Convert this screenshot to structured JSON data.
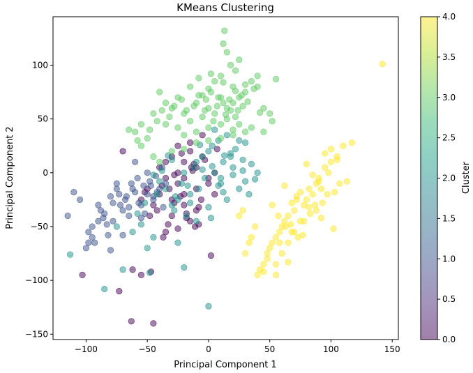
{
  "chart_data": {
    "type": "scatter",
    "title": "KMeans Clustering",
    "xlabel": "Principal Component 1",
    "ylabel": "Principal Component 2",
    "xlim": [
      -127,
      155
    ],
    "ylim": [
      -155,
      145
    ],
    "xticks": [
      -100,
      -50,
      0,
      50,
      100,
      150
    ],
    "yticks": [
      -150,
      -100,
      -50,
      0,
      50,
      100
    ],
    "grid": false,
    "marker_alpha": 0.5,
    "colorbar": {
      "label": "Cluster",
      "min": 0,
      "max": 4,
      "ticks": [
        "0.0",
        "0.5",
        "1.0",
        "1.5",
        "2.0",
        "2.5",
        "3.0",
        "3.5",
        "4.0"
      ],
      "colormap": [
        "#440154",
        "#482878",
        "#3e4989",
        "#31688e",
        "#26828e",
        "#1f9e89",
        "#35b779",
        "#6ece58",
        "#b5de2b",
        "#fde725"
      ]
    },
    "series": [
      {
        "cluster": 0,
        "color": "#440154",
        "x": [
          -70,
          -103,
          -73,
          -45,
          -63,
          -55,
          -62,
          -47,
          -25,
          -5,
          -20,
          -15,
          -10,
          -5,
          0,
          5,
          -35,
          -25,
          -40,
          -30,
          -50,
          -45,
          -20,
          -10,
          -30,
          -15,
          5,
          -25,
          -35,
          -40,
          -20,
          -10,
          0,
          -28,
          -18,
          -8,
          -55,
          -33,
          -23,
          -13,
          -3,
          7,
          -38,
          -42,
          -30,
          -15,
          -22,
          -12,
          -48,
          -52,
          -28,
          -18,
          -8,
          -35,
          -25,
          2,
          -20,
          -14,
          -6,
          -32,
          -37,
          -11
        ],
        "y": [
          20,
          -95,
          -110,
          -140,
          -138,
          -95,
          -90,
          -92,
          25,
          35,
          10,
          20,
          5,
          15,
          -5,
          0,
          10,
          -10,
          -20,
          -25,
          -15,
          -30,
          -30,
          -35,
          -40,
          -45,
          -20,
          0,
          -5,
          5,
          -20,
          -15,
          -10,
          -28,
          -38,
          -48,
          -25,
          -48,
          -22,
          2,
          12,
          22,
          -12,
          -35,
          15,
          28,
          18,
          8,
          -40,
          -18,
          -2,
          -42,
          -32,
          -55,
          -52,
          -77,
          -5,
          5,
          -25,
          -15,
          -60,
          -50
        ]
      },
      {
        "cluster": 1,
        "color": "#3b528b",
        "x": [
          -115,
          -110,
          -105,
          -98,
          -95,
          -93,
          -90,
          -88,
          -86,
          -83,
          -80,
          -78,
          -75,
          -73,
          -70,
          -68,
          -65,
          -63,
          -60,
          -58,
          -55,
          -53,
          -50,
          -48,
          -45,
          -43,
          -40,
          -38,
          -35,
          -100,
          -95,
          -90,
          -85,
          -82,
          -78,
          -72,
          -67,
          -62,
          -57,
          -52,
          -47,
          -42,
          -37,
          -80,
          -70,
          -60,
          -50,
          -75,
          -65,
          -55,
          -45,
          -98
        ],
        "y": [
          -40,
          -18,
          -25,
          -55,
          -60,
          -65,
          -30,
          -35,
          -42,
          -48,
          -22,
          -28,
          -15,
          -20,
          -35,
          -25,
          -40,
          -10,
          -18,
          -5,
          -30,
          -12,
          -20,
          -8,
          -25,
          -3,
          -15,
          5,
          -10,
          -70,
          -50,
          -45,
          -38,
          -58,
          -45,
          -30,
          -22,
          -15,
          -28,
          -38,
          -12,
          -18,
          -32,
          -72,
          -58,
          10,
          0,
          -10,
          -32,
          -42,
          -22,
          -65
        ]
      },
      {
        "cluster": 2,
        "color": "#21918c",
        "x": [
          -113,
          -85,
          -75,
          -70,
          -62,
          -55,
          -50,
          -48,
          -45,
          -42,
          -40,
          -35,
          -30,
          -28,
          -25,
          -22,
          -20,
          -18,
          -15,
          -12,
          -10,
          -8,
          -5,
          -3,
          0,
          3,
          5,
          8,
          10,
          12,
          15,
          18,
          20,
          22,
          25,
          28,
          30,
          33,
          35,
          40,
          0,
          -25,
          -20,
          -10,
          5,
          15,
          25,
          -5,
          10,
          20,
          -15,
          0,
          12,
          30,
          -30,
          -38,
          -45,
          -52,
          -58,
          2,
          8,
          18,
          28,
          38,
          -33,
          -27,
          -17,
          -7,
          3,
          13
        ],
        "y": [
          -76,
          -108,
          -50,
          -90,
          -55,
          -48,
          -70,
          -93,
          -60,
          -20,
          -8,
          -15,
          -30,
          -35,
          -25,
          -10,
          0,
          -40,
          -20,
          5,
          10,
          -15,
          15,
          -5,
          20,
          25,
          0,
          30,
          -10,
          10,
          -25,
          15,
          5,
          22,
          -15,
          12,
          28,
          -20,
          8,
          0,
          -124,
          -65,
          -88,
          -45,
          40,
          35,
          30,
          3,
          -5,
          -2,
          -28,
          -32,
          -18,
          -8,
          12,
          2,
          -2,
          -28,
          -38,
          -42,
          -12,
          18,
          2,
          -6,
          16,
          -22,
          -12,
          26,
          6,
          16
        ]
      },
      {
        "cluster": 3,
        "color": "#5ec962",
        "x": [
          -65,
          -55,
          -45,
          -40,
          -35,
          -30,
          -25,
          -20,
          -15,
          -10,
          -5,
          0,
          5,
          10,
          15,
          20,
          25,
          30,
          35,
          40,
          45,
          50,
          55,
          13,
          12,
          15,
          18,
          22,
          25,
          -42,
          -38,
          -32,
          -28,
          -22,
          -18,
          -12,
          -8,
          -2,
          2,
          8,
          12,
          18,
          22,
          28,
          -48,
          -50,
          -58,
          -60,
          -35,
          -25,
          -15,
          -5,
          5,
          15,
          25,
          35,
          45,
          -3,
          7,
          17,
          27,
          37,
          0,
          10,
          20,
          30,
          40,
          -20,
          -10,
          0,
          10,
          20,
          -30,
          -20,
          -10,
          0,
          10,
          20,
          30,
          -8,
          2,
          12,
          22,
          32,
          42,
          52,
          -40,
          -45,
          -55,
          4,
          14,
          24
        ],
        "y": [
          40,
          45,
          55,
          75,
          65,
          60,
          70,
          55,
          80,
          65,
          72,
          78,
          85,
          90,
          60,
          65,
          70,
          75,
          85,
          80,
          60,
          55,
          87,
          132,
          120,
          112,
          100,
          95,
          105,
          48,
          58,
          52,
          62,
          68,
          58,
          62,
          72,
          68,
          75,
          70,
          65,
          58,
          52,
          62,
          40,
          32,
          30,
          38,
          45,
          42,
          48,
          52,
          55,
          50,
          45,
          42,
          38,
          58,
          62,
          68,
          72,
          78,
          60,
          70,
          80,
          82,
          90,
          35,
          38,
          42,
          45,
          40,
          20,
          22,
          28,
          30,
          32,
          35,
          38,
          88,
          92,
          84,
          76,
          66,
          56,
          48,
          10,
          15,
          25,
          48,
          54,
          58
        ]
      },
      {
        "cluster": 4,
        "color": "#fde725",
        "x": [
          142,
          117,
          110,
          105,
          100,
          95,
          90,
          88,
          85,
          82,
          80,
          78,
          75,
          72,
          70,
          68,
          65,
          62,
          60,
          58,
          55,
          52,
          50,
          48,
          45,
          42,
          40,
          38,
          35,
          33,
          30,
          28,
          25,
          80,
          85,
          90,
          95,
          100,
          105,
          75,
          70,
          65,
          60,
          55,
          92,
          98,
          88,
          78,
          68,
          58,
          48,
          62,
          72,
          82,
          92,
          102,
          67,
          77,
          87,
          97,
          107,
          52,
          57,
          63,
          73,
          83,
          93,
          103,
          113,
          45,
          55,
          65
        ],
        "y": [
          101,
          28,
          25,
          15,
          10,
          5,
          -5,
          -10,
          -20,
          -15,
          -25,
          -30,
          -18,
          -25,
          -35,
          -28,
          -40,
          -45,
          -50,
          -55,
          -60,
          -65,
          -70,
          -80,
          -85,
          -90,
          -95,
          -50,
          -60,
          -65,
          -75,
          -35,
          -40,
          8,
          -2,
          -8,
          18,
          22,
          12,
          -45,
          -55,
          -65,
          -75,
          -85,
          -15,
          0,
          -35,
          -45,
          -55,
          -65,
          -75,
          -12,
          -22,
          -32,
          -42,
          -52,
          -48,
          -58,
          -30,
          -20,
          -10,
          -30,
          -40,
          -50,
          -60,
          -38,
          -28,
          -18,
          -8,
          -92,
          -95,
          -83
        ]
      }
    ]
  }
}
